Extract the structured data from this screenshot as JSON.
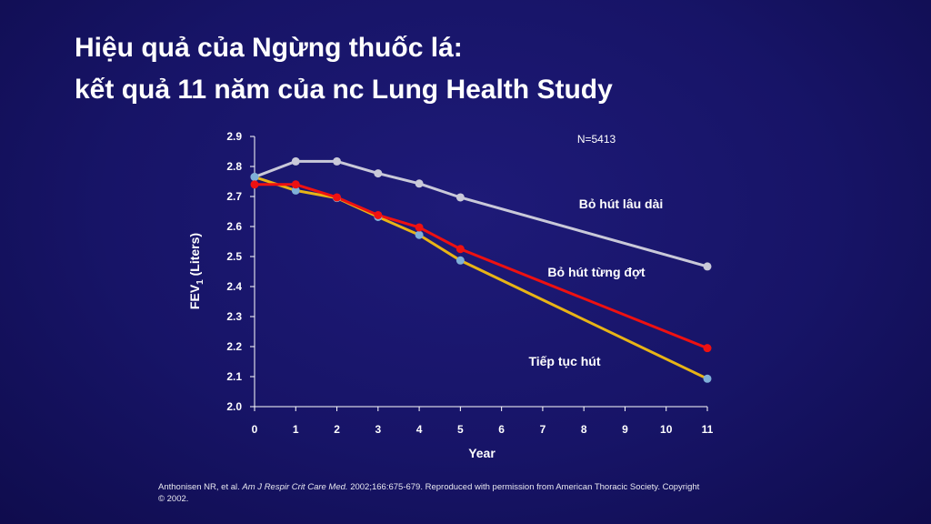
{
  "title": {
    "line1": "Hiệu quả của Ngừng thuốc lá:",
    "line2": "kết quả 11 năm của nc Lung Health Study"
  },
  "footnote": {
    "prefix": "Anthonisen NR, et al. ",
    "journal": "Am J Respir Crit Care Med.",
    "suffix": " 2002;166:675-679. Reproduced with permission from American Thoracic Society. Copyright © 2002."
  },
  "chart_data": {
    "type": "line",
    "xlabel": "Year",
    "ylabel": "FEV",
    "ylabel_sub": "1",
    "ylabel_unit": " (Liters)",
    "xlim": [
      0,
      11
    ],
    "ylim": [
      2.0,
      2.9
    ],
    "xticks": [
      "0",
      "1",
      "2",
      "3",
      "4",
      "5",
      "6",
      "7",
      "8",
      "9",
      "10",
      "11"
    ],
    "yticks": [
      "2.0",
      "2.1",
      "2.2",
      "2.3",
      "2.4",
      "2.5",
      "2.6",
      "2.7",
      "2.8",
      "2.9"
    ],
    "annotation": "N=5413",
    "grid": false,
    "series": [
      {
        "name": "Bỏ hút lâu dài",
        "line_color": "#c9c9d9",
        "marker_color": "#c9c9d9",
        "x": [
          0,
          1,
          2,
          3,
          4,
          5,
          11
        ],
        "y": [
          2.765,
          2.817,
          2.817,
          2.777,
          2.743,
          2.697,
          2.467
        ]
      },
      {
        "name": "Tiếp tục hút",
        "line_color": "#e8b416",
        "marker_color": "#7fb0d8",
        "x": [
          0,
          1,
          2,
          3,
          4,
          5,
          11
        ],
        "y": [
          2.765,
          2.72,
          2.695,
          2.632,
          2.572,
          2.487,
          2.093
        ]
      },
      {
        "name": "Bỏ hút từng đợt",
        "line_color": "#ee1111",
        "marker_color": "#ee1111",
        "x": [
          0,
          1,
          2,
          3,
          4,
          5,
          11
        ],
        "y": [
          2.74,
          2.74,
          2.697,
          2.638,
          2.597,
          2.525,
          2.195
        ]
      }
    ]
  }
}
